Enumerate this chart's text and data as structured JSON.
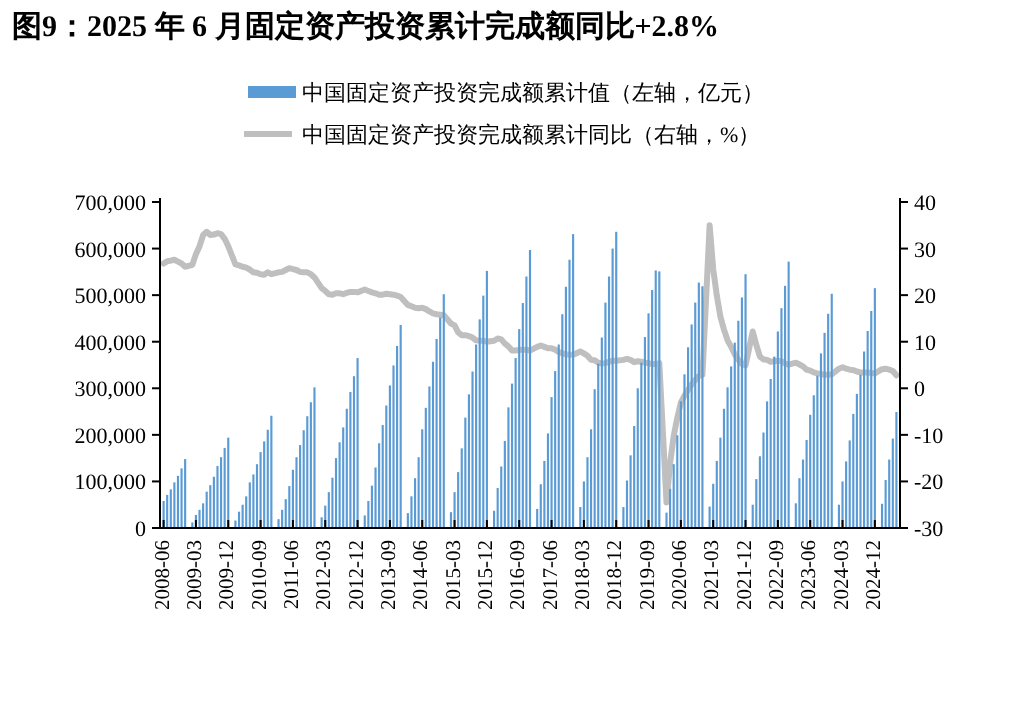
{
  "chart_data": {
    "type": "bar",
    "title": "图9：2025 年 6 月固定资产投资累计完成额同比+2.8%",
    "x": [
      "2008-06",
      "2008-07",
      "2008-08",
      "2008-09",
      "2008-10",
      "2008-11",
      "2008-12",
      "2009-02",
      "2009-03",
      "2009-04",
      "2009-05",
      "2009-06",
      "2009-07",
      "2009-08",
      "2009-09",
      "2009-10",
      "2009-11",
      "2009-12",
      "2010-02",
      "2010-03",
      "2010-04",
      "2010-05",
      "2010-06",
      "2010-07",
      "2010-08",
      "2010-09",
      "2010-10",
      "2010-11",
      "2010-12",
      "2011-02",
      "2011-03",
      "2011-04",
      "2011-05",
      "2011-06",
      "2011-07",
      "2011-08",
      "2011-09",
      "2011-10",
      "2011-11",
      "2011-12",
      "2012-02",
      "2012-03",
      "2012-04",
      "2012-05",
      "2012-06",
      "2012-07",
      "2012-08",
      "2012-09",
      "2012-10",
      "2012-11",
      "2012-12",
      "2013-02",
      "2013-03",
      "2013-04",
      "2013-05",
      "2013-06",
      "2013-07",
      "2013-08",
      "2013-09",
      "2013-10",
      "2013-11",
      "2013-12",
      "2014-02",
      "2014-03",
      "2014-04",
      "2014-05",
      "2014-06",
      "2014-07",
      "2014-08",
      "2014-09",
      "2014-10",
      "2014-11",
      "2014-12",
      "2015-02",
      "2015-03",
      "2015-04",
      "2015-05",
      "2015-06",
      "2015-07",
      "2015-08",
      "2015-09",
      "2015-10",
      "2015-11",
      "2015-12",
      "2016-02",
      "2016-03",
      "2016-04",
      "2016-05",
      "2016-06",
      "2016-07",
      "2016-08",
      "2016-09",
      "2016-10",
      "2016-11",
      "2016-12",
      "2017-02",
      "2017-03",
      "2017-04",
      "2017-05",
      "2017-06",
      "2017-07",
      "2017-08",
      "2017-09",
      "2017-10",
      "2017-11",
      "2017-12",
      "2018-02",
      "2018-03",
      "2018-04",
      "2018-05",
      "2018-06",
      "2018-07",
      "2018-08",
      "2018-09",
      "2018-10",
      "2018-11",
      "2018-12",
      "2019-02",
      "2019-03",
      "2019-04",
      "2019-05",
      "2019-06",
      "2019-07",
      "2019-08",
      "2019-09",
      "2019-10",
      "2019-11",
      "2019-12",
      "2020-02",
      "2020-03",
      "2020-04",
      "2020-05",
      "2020-06",
      "2020-07",
      "2020-08",
      "2020-09",
      "2020-10",
      "2020-11",
      "2020-12",
      "2021-02",
      "2021-03",
      "2021-04",
      "2021-05",
      "2021-06",
      "2021-07",
      "2021-08",
      "2021-09",
      "2021-10",
      "2021-11",
      "2021-12",
      "2022-02",
      "2022-03",
      "2022-04",
      "2022-05",
      "2022-06",
      "2022-07",
      "2022-08",
      "2022-09",
      "2022-10",
      "2022-11",
      "2022-12",
      "2023-02",
      "2023-03",
      "2023-04",
      "2023-05",
      "2023-06",
      "2023-07",
      "2023-08",
      "2023-09",
      "2023-10",
      "2023-11",
      "2023-12",
      "2024-02",
      "2024-03",
      "2024-04",
      "2024-05",
      "2024-06",
      "2024-07",
      "2024-08",
      "2024-09",
      "2024-10",
      "2024-11",
      "2024-12",
      "2025-02",
      "2025-03",
      "2025-04",
      "2025-05",
      "2025-06"
    ],
    "series": [
      {
        "name": "中国固定资产投资完成额累计值（左轴，亿元）",
        "axis": "y",
        "color": "#5b9bd5",
        "values": [
          58000,
          71000,
          83000,
          98000,
          112000,
          128000,
          148000,
          12000,
          28000,
          39000,
          53000,
          78000,
          92000,
          110000,
          133000,
          152000,
          172000,
          194000,
          16000,
          35000,
          50000,
          68000,
          98000,
          115000,
          137000,
          163000,
          186000,
          211000,
          241000,
          19000,
          39000,
          62000,
          90000,
          125000,
          152000,
          178000,
          210000,
          240000,
          270000,
          302000,
          23000,
          48000,
          77000,
          108000,
          150000,
          184000,
          216000,
          256000,
          292000,
          326000,
          365000,
          27000,
          58000,
          91000,
          130000,
          182000,
          221000,
          263000,
          306000,
          349000,
          391000,
          436000,
          32000,
          68000,
          107000,
          152000,
          212000,
          258000,
          304000,
          357000,
          406000,
          452000,
          502000,
          34000,
          77000,
          120000,
          171000,
          237000,
          287000,
          336000,
          394000,
          448000,
          499000,
          552000,
          37000,
          86000,
          132000,
          187000,
          259000,
          310000,
          365000,
          427000,
          483000,
          540000,
          597000,
          41000,
          94000,
          144000,
          203000,
          281000,
          337000,
          394000,
          459000,
          518000,
          576000,
          631000,
          45000,
          100000,
          152000,
          212000,
          298000,
          353000,
          409000,
          484000,
          540000,
          600000,
          636000,
          45000,
          102000,
          156000,
          219000,
          300000,
          355000,
          410000,
          461000,
          511000,
          553000,
          551000,
          33000,
          84000,
          137000,
          199000,
          272000,
          330000,
          388000,
          437000,
          484000,
          527000,
          519000,
          46000,
          95000,
          144000,
          194000,
          256000,
          302000,
          347000,
          398000,
          445000,
          495000,
          545000,
          50000,
          105000,
          154000,
          205000,
          272000,
          320000,
          368000,
          422000,
          472000,
          520000,
          572000,
          53000,
          107000,
          147000,
          189000,
          243000,
          285000,
          327000,
          375000,
          419000,
          460000,
          503000,
          50000,
          100000,
          143000,
          188000,
          245000,
          288000,
          329000,
          379000,
          423000,
          466000,
          515000,
          52000,
          103000,
          147000,
          192000,
          249000
        ]
      },
      {
        "name": "中国固定资产投资完成额累计同比（右轴，%）",
        "type": "line",
        "axis": "y2",
        "color": "#bfbfbf",
        "values": [
          26.8,
          27.3,
          27.4,
          27.6,
          27.2,
          26.8,
          26.1,
          26.5,
          28.8,
          30.5,
          32.9,
          33.6,
          32.9,
          33.0,
          33.3,
          33.1,
          32.1,
          30.5,
          26.6,
          26.4,
          26.1,
          25.9,
          25.5,
          24.9,
          24.8,
          24.5,
          24.4,
          24.9,
          24.5,
          24.9,
          25.0,
          25.4,
          25.8,
          25.6,
          25.4,
          25.0,
          24.9,
          24.9,
          24.5,
          23.8,
          21.5,
          20.9,
          20.2,
          20.1,
          20.4,
          20.4,
          20.2,
          20.5,
          20.7,
          20.7,
          20.6,
          21.2,
          20.9,
          20.6,
          20.4,
          20.1,
          20.1,
          20.3,
          20.2,
          20.1,
          19.9,
          19.6,
          17.9,
          17.6,
          17.3,
          17.2,
          17.3,
          17.0,
          16.5,
          16.1,
          15.9,
          15.8,
          15.7,
          13.9,
          13.5,
          12.0,
          11.4,
          11.4,
          11.2,
          10.9,
          10.3,
          10.2,
          10.2,
          10.0,
          10.2,
          10.7,
          10.5,
          9.6,
          9.0,
          8.1,
          8.1,
          8.2,
          8.3,
          8.3,
          8.1,
          8.9,
          9.2,
          8.9,
          8.6,
          8.6,
          8.3,
          7.8,
          7.5,
          7.3,
          7.2,
          7.2,
          7.9,
          7.5,
          7.0,
          6.1,
          6.0,
          5.5,
          5.3,
          5.4,
          5.7,
          5.9,
          5.9,
          6.1,
          6.3,
          6.1,
          5.6,
          5.8,
          5.7,
          5.5,
          5.4,
          5.2,
          5.2,
          5.4,
          -24.5,
          -16.1,
          -10.3,
          -6.3,
          -3.1,
          -1.6,
          -0.3,
          0.8,
          1.8,
          2.6,
          2.9,
          35.0,
          25.6,
          19.9,
          15.4,
          12.6,
          10.3,
          8.9,
          7.3,
          6.1,
          5.2,
          4.9,
          12.2,
          9.3,
          6.8,
          6.2,
          6.1,
          5.7,
          5.8,
          5.9,
          5.8,
          5.3,
          5.1,
          5.5,
          5.1,
          4.7,
          4.0,
          3.8,
          3.4,
          3.2,
          3.1,
          2.9,
          2.9,
          3.0,
          4.2,
          4.5,
          4.2,
          4.0,
          3.9,
          3.6,
          3.4,
          3.4,
          3.4,
          3.3,
          3.2,
          4.1,
          4.2,
          4.0,
          3.7,
          2.8
        ]
      }
    ],
    "xlim": [
      "2008-05",
      "2025-07"
    ],
    "xticks": [
      "2008-06",
      "2009-03",
      "2009-12",
      "2010-09",
      "2011-06",
      "2012-03",
      "2012-12",
      "2013-09",
      "2014-06",
      "2015-03",
      "2015-12",
      "2016-09",
      "2017-06",
      "2018-03",
      "2018-12",
      "2019-09",
      "2020-06",
      "2021-03",
      "2021-12",
      "2022-09",
      "2023-06",
      "2024-03",
      "2024-12"
    ],
    "ylim": [
      0,
      700000
    ],
    "yticks": [
      {
        "value": 0,
        "label": "0"
      },
      {
        "value": 100000,
        "label": "100,000"
      },
      {
        "value": 200000,
        "label": "200,000"
      },
      {
        "value": 300000,
        "label": "300,000"
      },
      {
        "value": 400000,
        "label": "400,000"
      },
      {
        "value": 500000,
        "label": "500,000"
      },
      {
        "value": 600000,
        "label": "600,000"
      },
      {
        "value": 700000,
        "label": "700,000"
      }
    ],
    "y2lim": [
      -30,
      40
    ],
    "y2ticks": [
      -30,
      -20,
      -10,
      0,
      10,
      20,
      30,
      40
    ],
    "grid": false,
    "legend": "top"
  }
}
